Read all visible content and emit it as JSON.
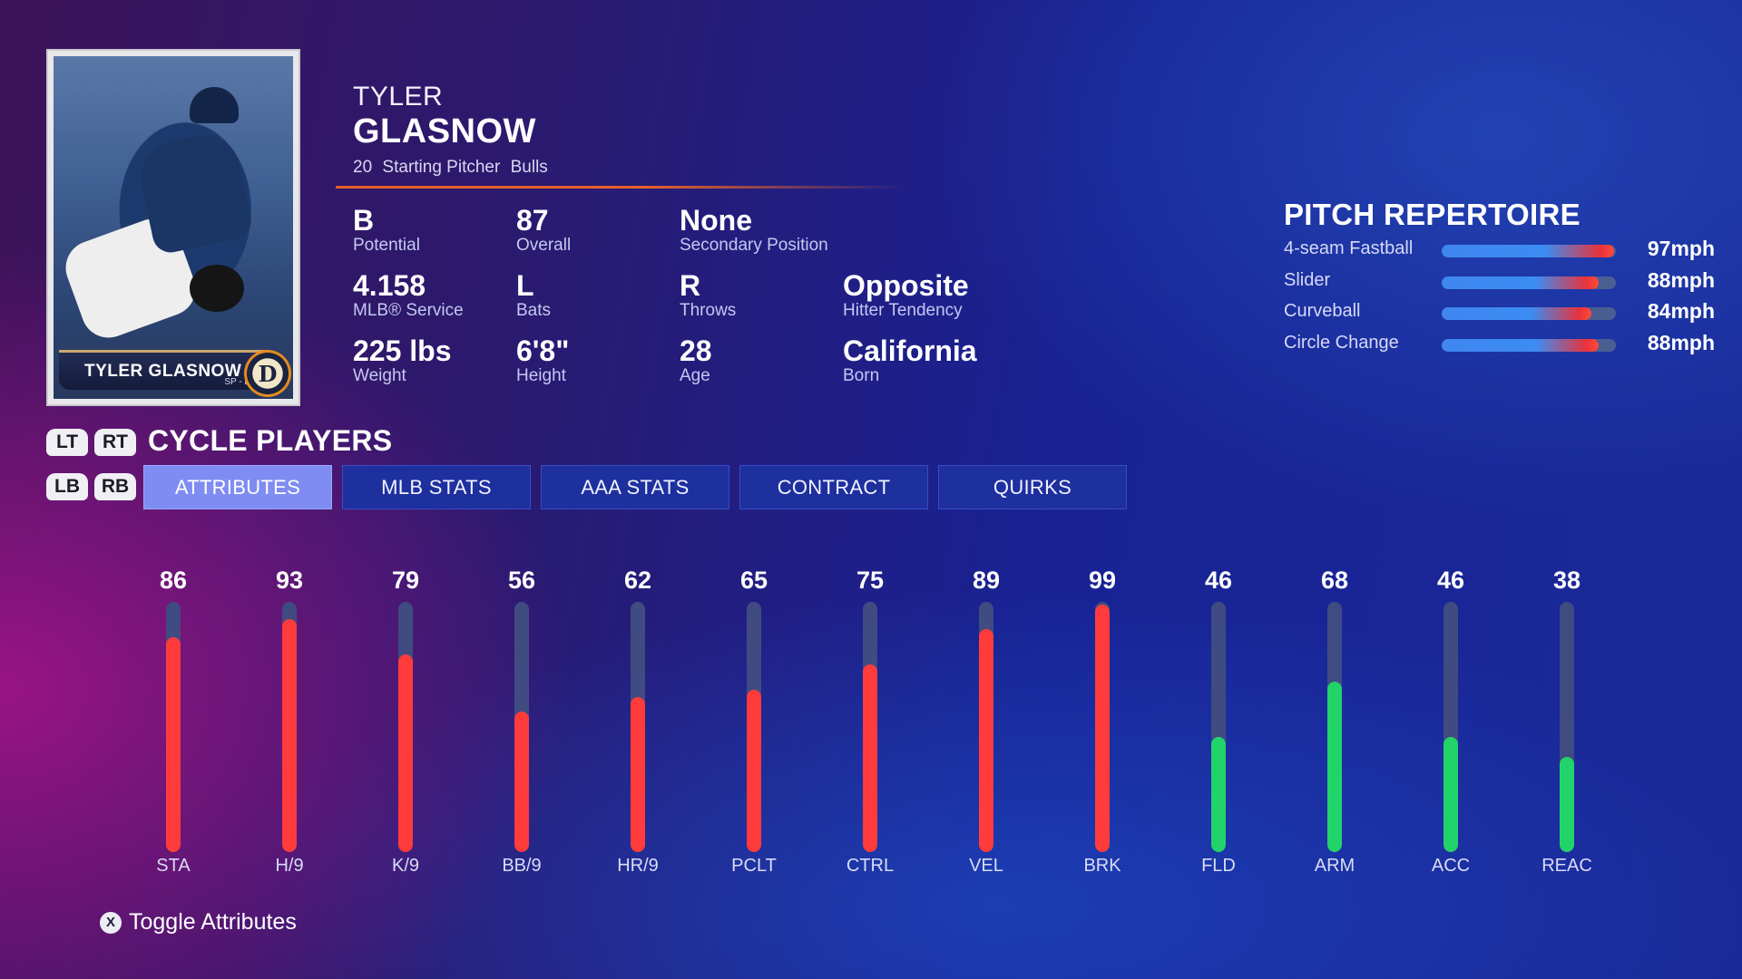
{
  "card": {
    "name": "TYLER GLASNOW",
    "position": "SP - L/R",
    "logo_letter": "D"
  },
  "player": {
    "first_name": "TYLER",
    "last_name": "GLASNOW",
    "number": "20",
    "position": "Starting Pitcher",
    "team": "Bulls"
  },
  "info": [
    {
      "value": "B",
      "label": "Potential"
    },
    {
      "value": "87",
      "label": "Overall"
    },
    {
      "value": "None",
      "label": "Secondary Position"
    },
    {
      "value": "4.158",
      "label": "MLB® Service"
    },
    {
      "value": "L",
      "label": "Bats"
    },
    {
      "value": "R",
      "label": "Throws"
    },
    {
      "value": "Opposite",
      "label": "Hitter Tendency"
    },
    {
      "value": "225 lbs",
      "label": "Weight"
    },
    {
      "value": "6'8\"",
      "label": "Height"
    },
    {
      "value": "28",
      "label": "Age"
    },
    {
      "value": "California",
      "label": "Born"
    }
  ],
  "repertoire": {
    "title": "PITCH REPERTOIRE",
    "pitches": [
      {
        "name": "4-seam Fastball",
        "speed": "97mph",
        "level": 0.99
      },
      {
        "name": "Slider",
        "speed": "88mph",
        "level": 0.9
      },
      {
        "name": "Curveball",
        "speed": "84mph",
        "level": 0.86
      },
      {
        "name": "Circle Change",
        "speed": "88mph",
        "level": 0.9
      }
    ]
  },
  "controls": {
    "lt": "LT",
    "rt": "RT",
    "lb": "LB",
    "rb": "RB",
    "cycle_label": "CYCLE PLAYERS",
    "toggle_button": "X",
    "toggle_label": "Toggle Attributes"
  },
  "tabs": [
    {
      "label": "ATTRIBUTES",
      "active": true
    },
    {
      "label": "MLB STATS",
      "active": false
    },
    {
      "label": "AAA STATS",
      "active": false
    },
    {
      "label": "CONTRACT",
      "active": false
    },
    {
      "label": "QUIRKS",
      "active": false
    }
  ],
  "colors": {
    "pitching": "#ff3b3b",
    "fielding": "#22d36a",
    "track": "#404b82"
  },
  "attributes": [
    {
      "label": "STA",
      "value": 86,
      "kind": "pitching"
    },
    {
      "label": "H/9",
      "value": 93,
      "kind": "pitching"
    },
    {
      "label": "K/9",
      "value": 79,
      "kind": "pitching"
    },
    {
      "label": "BB/9",
      "value": 56,
      "kind": "pitching"
    },
    {
      "label": "HR/9",
      "value": 62,
      "kind": "pitching"
    },
    {
      "label": "PCLT",
      "value": 65,
      "kind": "pitching"
    },
    {
      "label": "CTRL",
      "value": 75,
      "kind": "pitching"
    },
    {
      "label": "VEL",
      "value": 89,
      "kind": "pitching"
    },
    {
      "label": "BRK",
      "value": 99,
      "kind": "pitching"
    },
    {
      "label": "FLD",
      "value": 46,
      "kind": "fielding"
    },
    {
      "label": "ARM",
      "value": 68,
      "kind": "fielding"
    },
    {
      "label": "ACC",
      "value": 46,
      "kind": "fielding"
    },
    {
      "label": "REAC",
      "value": 38,
      "kind": "fielding"
    }
  ]
}
